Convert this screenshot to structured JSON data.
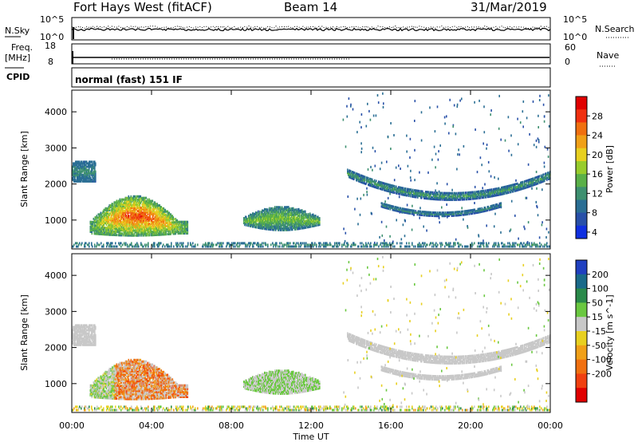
{
  "header": {
    "station": "Fort Hays West (fitACF)",
    "beam": "Beam 14",
    "date": "31/Mar/2019"
  },
  "summary": {
    "nsky_label": "N.Sky",
    "nsky_top": "10^5",
    "nsky_bottom": "10^0",
    "nsearch_label": "N.Search",
    "nsearch_top": "10^5",
    "nsearch_bottom": "10^0",
    "freq_label_1": "Freq.",
    "freq_label_2": "[MHz]",
    "freq_top": "18",
    "freq_bottom": "8",
    "nave_label": "Nave",
    "nave_top": "60",
    "nave_bottom": "0",
    "cpid_label": "CPID",
    "mode_text": "normal (fast) 151 IF"
  },
  "colors": {
    "power": [
      "#1030e0",
      "#2850a8",
      "#2a6e94",
      "#3e9070",
      "#5ab048",
      "#98cc2c",
      "#e8d020",
      "#f0a018",
      "#f07010",
      "#f03010",
      "#e00000"
    ],
    "velocity": [
      "#2040c0",
      "#1a6a8a",
      "#2a8a4a",
      "#6ac840",
      "#c8c8c8",
      "#e8d020",
      "#f0a018",
      "#f07010",
      "#f04010",
      "#e00000"
    ]
  },
  "chart_data": [
    {
      "type": "heatmap",
      "quantity": "power",
      "xlabel": "",
      "ylabel": "Slant Range [km]",
      "colorbar_label": "Power [dB]",
      "colorbar_ticks": [
        "28",
        "24",
        "20",
        "16",
        "12",
        "8",
        "4"
      ],
      "x_ticks": [
        "00:00",
        "04:00",
        "08:00",
        "12:00",
        "16:00",
        "20:00",
        "00:00"
      ],
      "y_ticks": [
        "1000",
        "2000",
        "3000",
        "4000"
      ],
      "xlim_hours": [
        0,
        24
      ],
      "ylim_km": [
        200,
        4600
      ]
    },
    {
      "type": "heatmap",
      "quantity": "velocity",
      "xlabel": "Time UT",
      "ylabel": "Slant Range [km]",
      "colorbar_label": "Velocity [m s^-1]",
      "colorbar_ticks": [
        "200",
        "100",
        "50",
        "15",
        "-15",
        "-50",
        "-100",
        "-200"
      ],
      "x_ticks": [
        "00:00",
        "04:00",
        "08:00",
        "12:00",
        "16:00",
        "20:00",
        "00:00"
      ],
      "y_ticks": [
        "1000",
        "2000",
        "3000",
        "4000"
      ],
      "xlim_hours": [
        0,
        24
      ],
      "ylim_km": [
        200,
        4600
      ]
    }
  ],
  "echo_regions": [
    {
      "name": "early-patch",
      "t0": 0.0,
      "t1": 1.2,
      "r0": 2050,
      "r1": 2600,
      "power": [
        6,
        12
      ],
      "vel": [
        -10,
        15
      ]
    },
    {
      "name": "main-patch",
      "t0": 0.9,
      "t1": 5.8,
      "r0": 550,
      "r1": 1650,
      "power": [
        8,
        30
      ],
      "vel": [
        -250,
        -20
      ]
    },
    {
      "name": "mid-patch",
      "t0": 8.6,
      "t1": 12.4,
      "r0": 700,
      "r1": 1400,
      "power": [
        6,
        20
      ],
      "vel": [
        -40,
        60
      ]
    },
    {
      "name": "arc-upper",
      "t0": 13.8,
      "t1": 24.0,
      "r0": 1500,
      "r1": 2350,
      "power": [
        4,
        16
      ],
      "vel": [
        -10,
        10
      ]
    },
    {
      "name": "arc-lower",
      "t0": 15.5,
      "t1": 21.5,
      "r0": 1050,
      "r1": 1500,
      "power": [
        4,
        14
      ],
      "vel": [
        -10,
        10
      ]
    },
    {
      "name": "near-range",
      "t0": 0.0,
      "t1": 24.0,
      "r0": 200,
      "r1": 380,
      "power": [
        4,
        14
      ],
      "vel": [
        -60,
        60
      ]
    }
  ]
}
